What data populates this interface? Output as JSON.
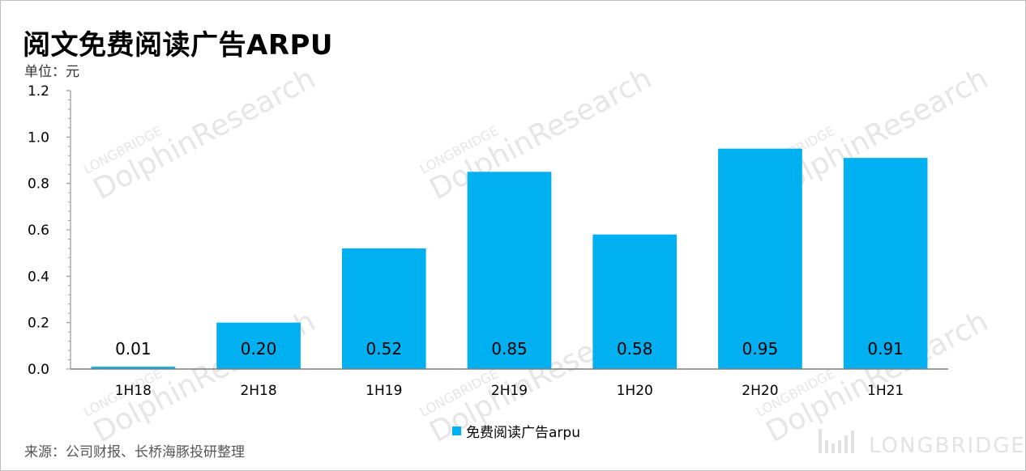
{
  "title": "阅文免费阅读广告ARPU",
  "unit": "单位：元",
  "source": "来源：公司财报、长桥海豚投研整理",
  "watermark": {
    "line1": "LONGBRIDGE",
    "line2": "DolphinResearch",
    "brand": "LONGBRIDGE"
  },
  "chart_data": {
    "type": "bar",
    "categories": [
      "1H18",
      "2H18",
      "1H19",
      "2H19",
      "1H20",
      "2H20",
      "1H21"
    ],
    "series": [
      {
        "name": "免费阅读广告arpu",
        "values": [
          0.01,
          0.2,
          0.52,
          0.85,
          0.58,
          0.95,
          0.91
        ],
        "color": "#00b0f0"
      }
    ],
    "data_labels": [
      "0.01",
      "0.20",
      "0.52",
      "0.85",
      "0.58",
      "0.95",
      "0.91"
    ],
    "yticks": [
      "0.0",
      "0.2",
      "0.4",
      "0.6",
      "0.8",
      "1.0",
      "1.2"
    ],
    "ylim": [
      0,
      1.2
    ],
    "legend": "bottom-center",
    "grid": false
  }
}
